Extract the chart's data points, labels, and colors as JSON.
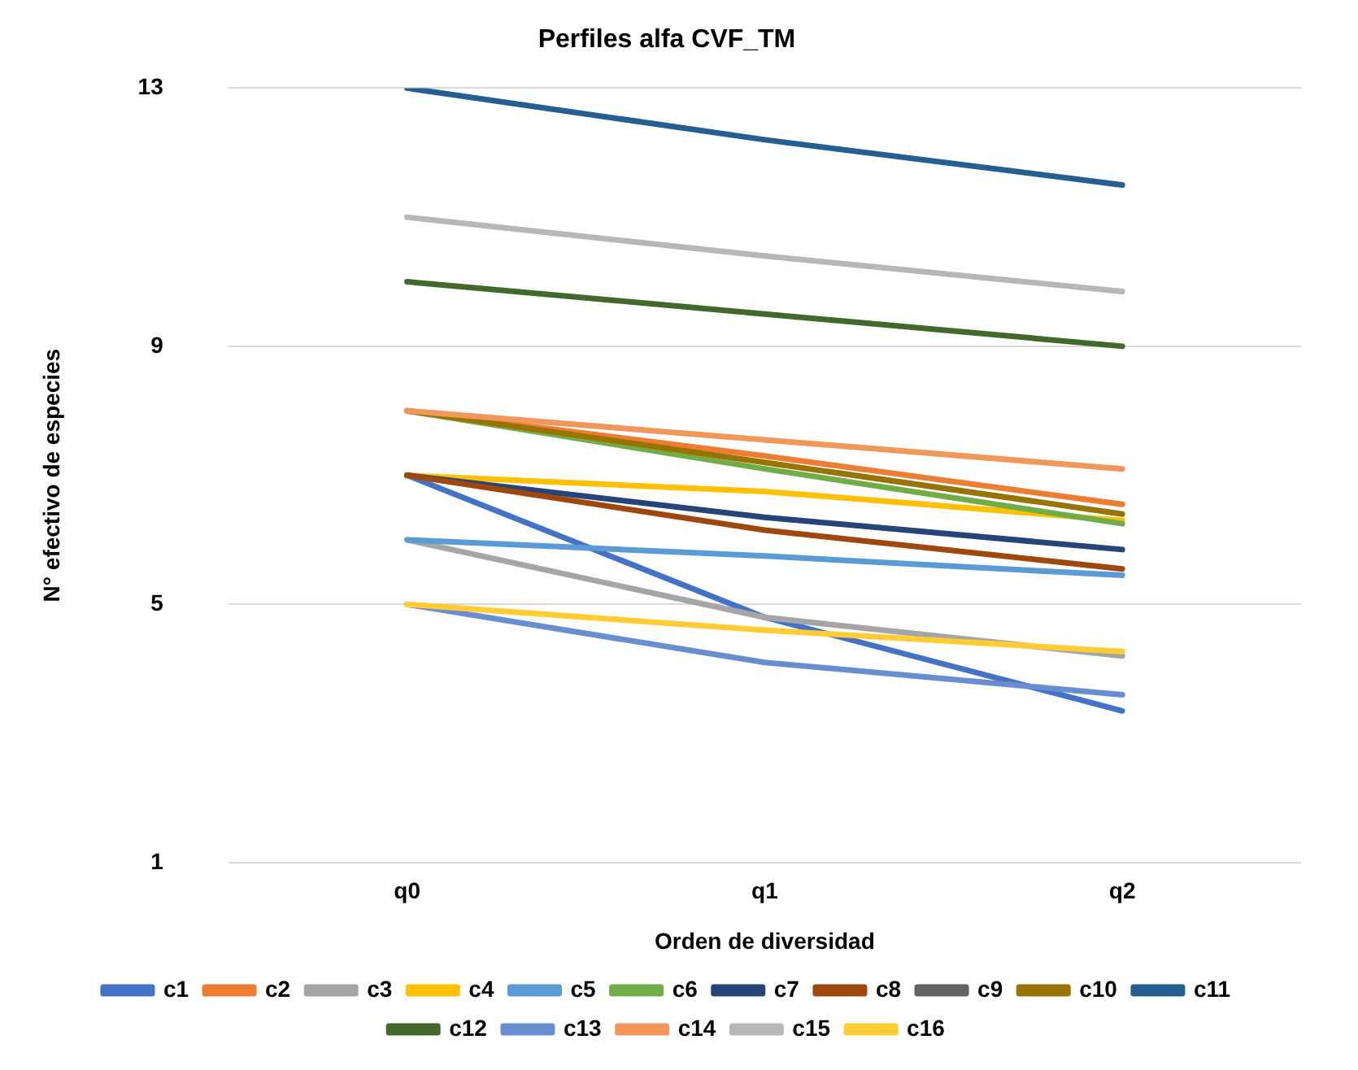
{
  "chart_data": {
    "type": "line",
    "title": "Perfiles alfa CVF_TM",
    "xlabel": "Orden de diversidad",
    "ylabel": "N° efectivo de especies",
    "categories": [
      "q0",
      "q1",
      "q2"
    ],
    "ylim": [
      1,
      13
    ],
    "yticks": [
      1,
      5,
      9,
      13
    ],
    "grid": "y",
    "legend": "bottom",
    "marker": "none",
    "line_style": "solid",
    "series": [
      {
        "name": "c1",
        "color": "#4472c4",
        "values": [
          7,
          4.8,
          3.35
        ]
      },
      {
        "name": "c2",
        "color": "#ed7d31",
        "values": [
          8,
          7.3,
          6.55
        ]
      },
      {
        "name": "c3",
        "color": "#a5a5a5",
        "values": [
          6,
          4.8,
          4.2
        ]
      },
      {
        "name": "c4",
        "color": "#ffc000",
        "values": [
          7,
          6.75,
          6.3
        ]
      },
      {
        "name": "c5",
        "color": "#5b9bd5",
        "values": [
          6,
          5.75,
          5.45
        ]
      },
      {
        "name": "c6",
        "color": "#70ad47",
        "values": [
          8,
          7.1,
          6.25
        ]
      },
      {
        "name": "c7",
        "color": "#264478",
        "values": [
          7,
          6.35,
          5.85
        ]
      },
      {
        "name": "c8",
        "color": "#9e480e",
        "values": [
          7,
          6.15,
          5.55
        ]
      },
      {
        "name": "c9",
        "color": "#636363",
        "values": [
          null,
          null,
          null
        ]
      },
      {
        "name": "c10",
        "color": "#997300",
        "values": [
          8,
          7.2,
          6.4
        ]
      },
      {
        "name": "c11",
        "color": "#255e91",
        "values": [
          13,
          12.2,
          11.5
        ]
      },
      {
        "name": "c12",
        "color": "#43682b",
        "values": [
          10,
          9.5,
          9
        ]
      },
      {
        "name": "c13",
        "color": "#698ed0",
        "values": [
          5,
          4.1,
          3.6
        ]
      },
      {
        "name": "c14",
        "color": "#f1975a",
        "values": [
          8,
          7.55,
          7.1
        ]
      },
      {
        "name": "c15",
        "color": "#b7b7b7",
        "values": [
          11,
          10.4,
          9.85
        ]
      },
      {
        "name": "c16",
        "color": "#ffcd33",
        "values": [
          5,
          4.6,
          4.27
        ]
      }
    ]
  }
}
